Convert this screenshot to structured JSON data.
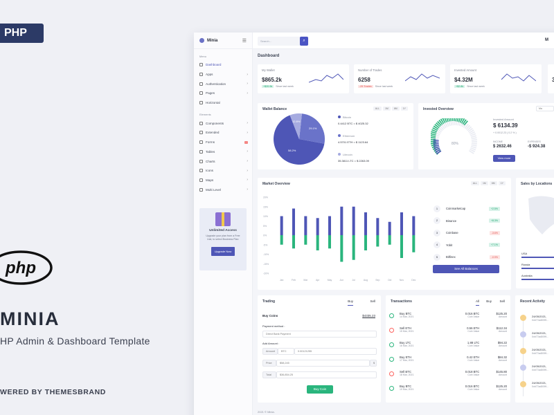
{
  "promo": {
    "badge": "PHP",
    "logo_text": "php",
    "title": "MINIA",
    "subtitle": "HP Admin & Dashboard Template",
    "powered": "WERED BY THEMESBRAND"
  },
  "app": {
    "brand": "Minia",
    "search_placeholder": "Search...",
    "top_initial": "M",
    "page_title": "Dashboard",
    "sidebar": {
      "section_menu": "Menu",
      "section_elements": "Elements",
      "menu": [
        {
          "label": "Dashboard",
          "chev": ""
        },
        {
          "label": "Apps",
          "chev": "›"
        },
        {
          "label": "Authentication",
          "chev": "›"
        },
        {
          "label": "Pages",
          "chev": "›"
        },
        {
          "label": "Horizontal",
          "chev": ""
        }
      ],
      "elements": [
        {
          "label": "Components",
          "chev": "›"
        },
        {
          "label": "Extended",
          "chev": "›"
        },
        {
          "label": "Forms",
          "chev": ""
        },
        {
          "label": "Tables",
          "chev": "›"
        },
        {
          "label": "Charts",
          "chev": "›"
        },
        {
          "label": "Icons",
          "chev": "›"
        },
        {
          "label": "Maps",
          "chev": "›"
        },
        {
          "label": "Multi Level",
          "chev": "›"
        }
      ],
      "upgrade_title": "Unlimited Access",
      "upgrade_desc": "Upgrade your plan from a Free trial, to select Business Plan",
      "upgrade_button": "Upgrade Now"
    },
    "stats": [
      {
        "label": "My Wallet",
        "value": "$865.2k",
        "change": "+$20.9k",
        "since": "Since last week",
        "tone": "g"
      },
      {
        "label": "Number of Trades",
        "value": "6258",
        "change": "-29 Trades",
        "since": "Since last week",
        "tone": "r"
      },
      {
        "label": "Invested Amount",
        "value": "$4.32M",
        "change": "+$2.8k",
        "since": "Since last week",
        "tone": "g"
      }
    ],
    "stat4_value": "3",
    "wallet": {
      "title": "Wallet Balance",
      "periods": [
        "ALL",
        "1M",
        "6M",
        "1Y"
      ],
      "pie_labels": [
        "58.2%",
        "29.1%",
        "12.8%"
      ],
      "coins": [
        {
          "name": "Bitcoin",
          "value": "0.4412 BTC = $ 4025.32"
        },
        {
          "name": "Ethereum",
          "value": "4.5701 ETH = $ 1123.64"
        },
        {
          "name": "Litecoin",
          "value": "35.3811 LTC = $ 2263.09"
        }
      ]
    },
    "invested": {
      "title": "Invested Overview",
      "dropdown": "Ma",
      "gauge_label": "80%",
      "amount_label": "Invested Amount",
      "amount": "$ 6134.39",
      "amount_change": "+ 0.0012.23 ( 0.2 % )",
      "income_label": "INCOME",
      "income": "$ 2632.46",
      "expenses_label": "EXPENSES",
      "expenses": "-$ 924.38",
      "button": "View more"
    },
    "market": {
      "title": "Market Overview",
      "periods": [
        "ALL",
        "1M",
        "6M",
        "1Y"
      ],
      "y_ticks": [
        "20%",
        "15%",
        "10%",
        "5%",
        "0%",
        "-5%",
        "-10%",
        "-15%",
        "-20%"
      ],
      "months": [
        "Jan",
        "Feb",
        "Mar",
        "Apr",
        "May",
        "Jun",
        "Jul",
        "Aug",
        "Sep",
        "Oct",
        "Nov",
        "Dec"
      ],
      "list": [
        {
          "n": "1",
          "name": "Coinmarketcap",
          "chg": "+2.5%",
          "tone": "g"
        },
        {
          "n": "2",
          "name": "Binance",
          "chg": "+8.3%",
          "tone": "g"
        },
        {
          "n": "3",
          "name": "Coinbase",
          "chg": "-3.6%",
          "tone": "r"
        },
        {
          "n": "4",
          "name": "Yobit",
          "chg": "+7.1%",
          "tone": "g"
        },
        {
          "n": "5",
          "name": "Bitfinex",
          "chg": "-0.9%",
          "tone": "r"
        }
      ],
      "button": "See All Balances"
    },
    "locations": {
      "title": "Sales by Locations",
      "rows": [
        "USA",
        "Russia",
        "Australia"
      ]
    },
    "trading": {
      "title": "Trading",
      "tabs": [
        "Buy",
        "Sell"
      ],
      "buy_label": "Buy Coins",
      "balance": "$4335.23",
      "payment_label": "Payment method :",
      "payment_value": "Direct Bank Payment",
      "add_amount": "Add Amount :",
      "amount_prefix": "Amount",
      "coin": "BTC",
      "amount_value": "0.00121255",
      "price_prefix": "Price",
      "price_value": "$58,245",
      "price_suffix": "$",
      "total_prefix": "Total",
      "total_value": "$36,854.25",
      "button": "Buy Coin"
    },
    "transactions": {
      "title": "Transactions",
      "tabs": [
        "All",
        "Buy",
        "Sell"
      ],
      "rows": [
        {
          "type": "Buy BTC",
          "date": "14 Mar, 2021",
          "qty": "0.016 BTC",
          "qty_sub": "Coin Value",
          "amt": "$125.20",
          "amt_sub": "Amount",
          "tone": "g"
        },
        {
          "type": "Sell ETH",
          "date": "15 Mar, 2021",
          "qty": "0.56 ETH",
          "qty_sub": "Coin Value",
          "amt": "$112.34",
          "amt_sub": "Amount",
          "tone": "r"
        },
        {
          "type": "Buy LTC",
          "date": "16 Mar, 2021",
          "qty": "1.88 LTC",
          "qty_sub": "Coin Value",
          "amt": "$94.22",
          "amt_sub": "Amount",
          "tone": "g"
        },
        {
          "type": "Buy ETH",
          "date": "17 Mar, 2021",
          "qty": "0.42 ETH",
          "qty_sub": "Coin Value",
          "amt": "$84.32",
          "amt_sub": "Amount",
          "tone": "g"
        },
        {
          "type": "Sell BTC",
          "date": "18 Mar, 2021",
          "qty": "0.018 BTC",
          "qty_sub": "Coin Value",
          "amt": "$145.80",
          "amt_sub": "Amount",
          "tone": "r"
        },
        {
          "type": "Buy BTC",
          "date": "19 Mar, 2021",
          "qty": "0.016 BTC",
          "qty_sub": "Coin Value",
          "amt": "$125.20",
          "amt_sub": "Amount",
          "tone": "g"
        }
      ]
    },
    "activity": {
      "title": "Recent Activity",
      "rows": [
        {
          "date": "24/05/2021,",
          "hash": "0xb77ad0099..."
        },
        {
          "date": "24/05/2021,",
          "hash": "0xb77ad0099..."
        },
        {
          "date": "24/05/2021,",
          "hash": "0xb77ad0099..."
        },
        {
          "date": "24/05/2021,",
          "hash": "0xb77ad0099..."
        },
        {
          "date": "24/05/2021,",
          "hash": "0xb77ad0099..."
        }
      ]
    },
    "footer": "2021 © Minia."
  },
  "colors": {
    "primary": "#4e56b6",
    "green": "#2ab57d",
    "red": "#fd625e",
    "pie": [
      "#4e56b6",
      "#6a73c9",
      "#a6abe0"
    ]
  },
  "chart_data": {
    "type": "bar",
    "title": "Market Overview",
    "categories": [
      "Jan",
      "Feb",
      "Mar",
      "Apr",
      "May",
      "Jun",
      "Jul",
      "Aug",
      "Sep",
      "Oct",
      "Nov",
      "Dec"
    ],
    "ylim": [
      -20,
      20
    ],
    "series": [
      {
        "values": [
          10,
          14,
          10,
          9,
          10,
          15,
          15,
          12,
          9,
          7,
          12,
          10
        ]
      },
      {
        "values": [
          -5,
          -7,
          -5,
          -8,
          -7,
          -14,
          -13,
          -8,
          -6,
          -5,
          -12,
          -9
        ]
      }
    ]
  }
}
